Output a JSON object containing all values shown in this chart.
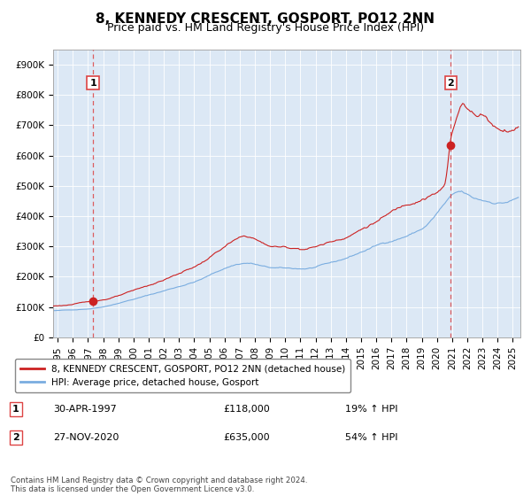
{
  "title": "8, KENNEDY CRESCENT, GOSPORT, PO12 2NN",
  "subtitle": "Price paid vs. HM Land Registry's House Price Index (HPI)",
  "ylim": [
    0,
    950000
  ],
  "xlim_start": 1994.7,
  "xlim_end": 2025.5,
  "yticks": [
    0,
    100000,
    200000,
    300000,
    400000,
    500000,
    600000,
    700000,
    800000,
    900000
  ],
  "ytick_labels": [
    "£0",
    "£100K",
    "£200K",
    "£300K",
    "£400K",
    "£500K",
    "£600K",
    "£700K",
    "£800K",
    "£900K"
  ],
  "xtick_years": [
    1995,
    1996,
    1997,
    1998,
    1999,
    2000,
    2001,
    2002,
    2003,
    2004,
    2005,
    2006,
    2007,
    2008,
    2009,
    2010,
    2011,
    2012,
    2013,
    2014,
    2015,
    2016,
    2017,
    2018,
    2019,
    2020,
    2021,
    2022,
    2023,
    2024,
    2025
  ],
  "sale1_x": 1997.33,
  "sale1_y": 118000,
  "sale2_x": 2020.92,
  "sale2_y": 635000,
  "sale1_date": "30-APR-1997",
  "sale1_price": "£118,000",
  "sale1_hpi": "19% ↑ HPI",
  "sale2_date": "27-NOV-2020",
  "sale2_price": "£635,000",
  "sale2_hpi": "54% ↑ HPI",
  "line_color_red": "#cc2222",
  "line_color_blue": "#7aade0",
  "dashed_line_color": "#dd4444",
  "marker_color": "#cc2222",
  "plot_bg": "#dce8f5",
  "legend_line1": "8, KENNEDY CRESCENT, GOSPORT, PO12 2NN (detached house)",
  "legend_line2": "HPI: Average price, detached house, Gosport",
  "footer": "Contains HM Land Registry data © Crown copyright and database right 2024.\nThis data is licensed under the Open Government Licence v3.0.",
  "title_fontsize": 11,
  "subtitle_fontsize": 9,
  "tick_fontsize": 7.5
}
